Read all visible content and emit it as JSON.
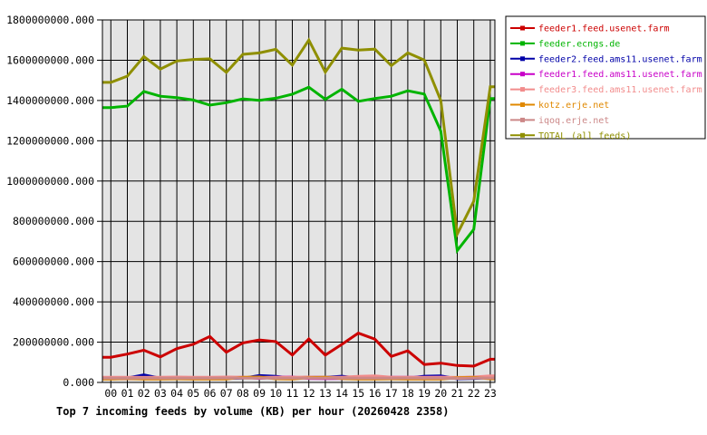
{
  "page": {
    "background": "#ffffff"
  },
  "title": "Top 7 incoming feeds by volume (KB) per hour (20260428 2358)",
  "chart_data": {
    "type": "line",
    "x_labels": [
      "00",
      "01",
      "02",
      "03",
      "04",
      "05",
      "06",
      "07",
      "08",
      "09",
      "10",
      "11",
      "12",
      "13",
      "14",
      "15",
      "16",
      "17",
      "18",
      "19",
      "20",
      "21",
      "22",
      "23"
    ],
    "ylim": [
      0,
      1800000000
    ],
    "ytick_step": 200000000,
    "ytick_labels_top_to_bottom": [
      "1800000000.000",
      "1600000000.000",
      "1400000000.000",
      "1200000000.000",
      "1000000000.000",
      "800000000.000",
      "600000000.000",
      "400000000.000",
      "200000000.000",
      "0.000"
    ],
    "grid": true,
    "plot_bg": "#e4e4e4",
    "grid_color": "#000000",
    "axis_color": "#000000",
    "legend_position": "top-right",
    "legend_bg": "#ffffff",
    "legend_border": "#000000",
    "series": [
      {
        "name": "feeder1.feed.usenet.farm",
        "color": "#cc0000",
        "values": [
          125000000,
          141000000,
          160000000,
          127000000,
          168000000,
          190000000,
          228000000,
          150000000,
          196000000,
          211000000,
          203000000,
          136000000,
          216000000,
          136000000,
          189000000,
          245000000,
          215000000,
          129000000,
          157000000,
          89000000,
          96000000,
          84000000,
          81000000,
          115000000
        ]
      },
      {
        "name": "feeder.ecngs.de",
        "color": "#00b400",
        "values": [
          1365000000,
          1372000000,
          1445000000,
          1421000000,
          1414000000,
          1402000000,
          1377000000,
          1389000000,
          1408000000,
          1401000000,
          1411000000,
          1431000000,
          1466000000,
          1406000000,
          1456000000,
          1396000000,
          1410000000,
          1421000000,
          1448000000,
          1432000000,
          1248000000,
          655000000,
          760000000,
          1410000000
        ]
      },
      {
        "name": "feeder2.feed.ams11.usenet.farm",
        "color": "#0000a8",
        "values": [
          20000000,
          22000000,
          38000000,
          21000000,
          20000000,
          21000000,
          22000000,
          20000000,
          21000000,
          34000000,
          30000000,
          21000000,
          27000000,
          25000000,
          31000000,
          21000000,
          22000000,
          20000000,
          21000000,
          31000000,
          33000000,
          18000000,
          20000000,
          24000000
        ]
      },
      {
        "name": "feeder1.feed.ams11.usenet.farm",
        "color": "#c800c8",
        "values": [
          18000000,
          19000000,
          20000000,
          18000000,
          19000000,
          18000000,
          19000000,
          24000000,
          26000000,
          20000000,
          26000000,
          27000000,
          20000000,
          19000000,
          20000000,
          19000000,
          24000000,
          26000000,
          26000000,
          25000000,
          26000000,
          24000000,
          26000000,
          28000000
        ]
      },
      {
        "name": "feeder3.feed.ams11.usenet.farm",
        "color": "#f28c8c",
        "values": [
          26000000,
          26000000,
          25000000,
          26000000,
          27000000,
          26000000,
          26000000,
          27000000,
          26000000,
          25000000,
          26000000,
          26000000,
          27000000,
          26000000,
          26000000,
          30000000,
          33000000,
          26000000,
          26000000,
          25000000,
          26000000,
          25000000,
          27000000,
          33000000
        ]
      },
      {
        "name": "kotz.erje.net",
        "color": "#e08800",
        "values": [
          17000000,
          19000000,
          17000000,
          17000000,
          18000000,
          17000000,
          17000000,
          17000000,
          25000000,
          27000000,
          18000000,
          17000000,
          24000000,
          26000000,
          19000000,
          17000000,
          17000000,
          18000000,
          17000000,
          17000000,
          17000000,
          23000000,
          25000000,
          18000000
        ]
      },
      {
        "name": "iqoq.erje.net",
        "color": "#cc8888",
        "values": [
          21000000,
          21000000,
          22000000,
          21000000,
          21000000,
          21000000,
          21000000,
          22000000,
          21000000,
          21000000,
          21000000,
          22000000,
          21000000,
          21000000,
          22000000,
          21000000,
          21000000,
          21000000,
          22000000,
          21000000,
          21000000,
          20000000,
          21000000,
          22000000
        ]
      },
      {
        "name": "TOTAL (all feeds)",
        "color": "#8f8f00",
        "values": [
          1490000000,
          1521000000,
          1618000000,
          1556000000,
          1596000000,
          1604000000,
          1607000000,
          1540000000,
          1629000000,
          1636000000,
          1654000000,
          1576000000,
          1700000000,
          1541000000,
          1660000000,
          1650000000,
          1655000000,
          1573000000,
          1636000000,
          1601000000,
          1400000000,
          737000000,
          900000000,
          1468000000
        ]
      }
    ]
  }
}
